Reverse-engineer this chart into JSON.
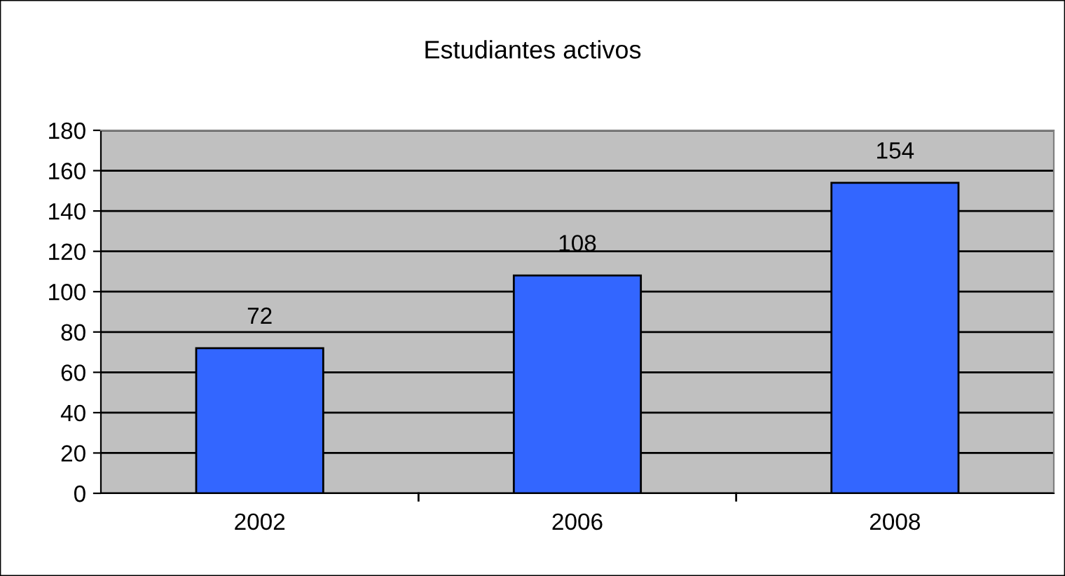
{
  "chart_data": {
    "type": "bar",
    "title": "Estudiantes activos",
    "categories": [
      "2002",
      "2006",
      "2008"
    ],
    "values": [
      72,
      108,
      154
    ],
    "color": "#3366ff",
    "ylim": [
      0,
      180
    ],
    "yticks": [
      0,
      20,
      40,
      60,
      80,
      100,
      120,
      140,
      160,
      180
    ],
    "grid": "y",
    "data_labels": true
  }
}
